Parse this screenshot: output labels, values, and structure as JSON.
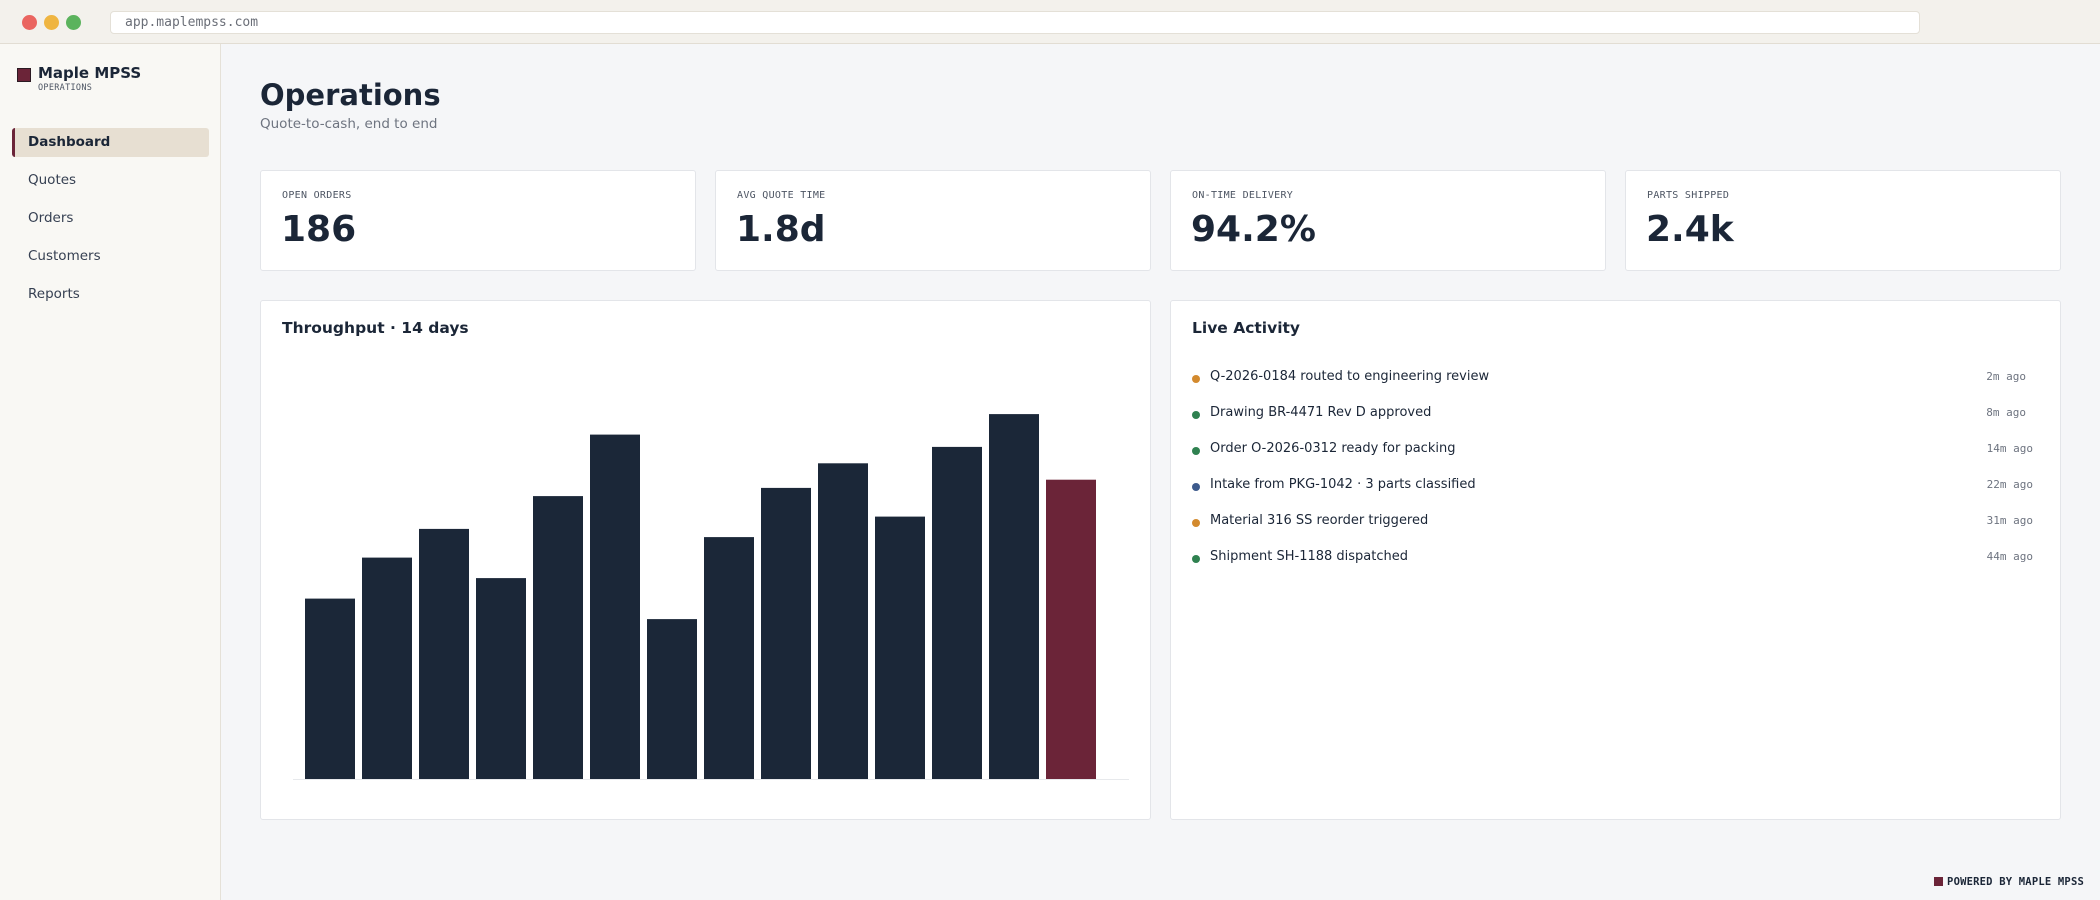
{
  "browser": {
    "url": "app.maplempss.com"
  },
  "sidebar": {
    "brand_name": "Maple MPSS",
    "brand_sub": "OPERATIONS",
    "items": [
      {
        "label": "Dashboard",
        "active": true
      },
      {
        "label": "Quotes",
        "active": false
      },
      {
        "label": "Orders",
        "active": false
      },
      {
        "label": "Customers",
        "active": false
      },
      {
        "label": "Reports",
        "active": false
      }
    ]
  },
  "header": {
    "title": "Operations",
    "subtitle": "Quote-to-cash, end to end"
  },
  "kpis": [
    {
      "label": "OPEN ORDERS",
      "value": "186"
    },
    {
      "label": "AVG QUOTE TIME",
      "value": "1.8d"
    },
    {
      "label": "ON-TIME DELIVERY",
      "value": "94.2%"
    },
    {
      "label": "PARTS SHIPPED",
      "value": "2.4k"
    }
  ],
  "throughput": {
    "title": "Throughput · 14 days",
    "chart_data": {
      "type": "bar",
      "categories": [
        "",
        "",
        "",
        "",
        "",
        "",
        "",
        "",
        "",
        "",
        "",
        "",
        "",
        ""
      ],
      "values": [
        44,
        54,
        61,
        49,
        69,
        84,
        39,
        59,
        71,
        77,
        64,
        81,
        89,
        73
      ],
      "ylim": [
        0,
        100
      ],
      "grid": false,
      "colors": {
        "bar": "#1b2738",
        "highlight": "#6b2438"
      },
      "highlight_index": 13
    }
  },
  "activity": {
    "title": "Live Activity",
    "items": [
      {
        "text": "Q-2026-0184 routed to engineering review",
        "time": "2m ago",
        "status_color": "#d38a2e"
      },
      {
        "text": "Drawing BR-4471 Rev D approved",
        "time": "8m ago",
        "status_color": "#2f8150"
      },
      {
        "text": "Order O-2026-0312 ready for packing",
        "time": "14m ago",
        "status_color": "#2f8150"
      },
      {
        "text": "Intake from PKG-1042 · 3 parts classified",
        "time": "22m ago",
        "status_color": "#3d5a8c"
      },
      {
        "text": "Material 316 SS reorder triggered",
        "time": "31m ago",
        "status_color": "#d38a2e"
      },
      {
        "text": "Shipment SH-1188 dispatched",
        "time": "44m ago",
        "status_color": "#2f8150"
      }
    ]
  },
  "footer": {
    "powered_by": "POWERED BY MAPLE MPSS"
  }
}
